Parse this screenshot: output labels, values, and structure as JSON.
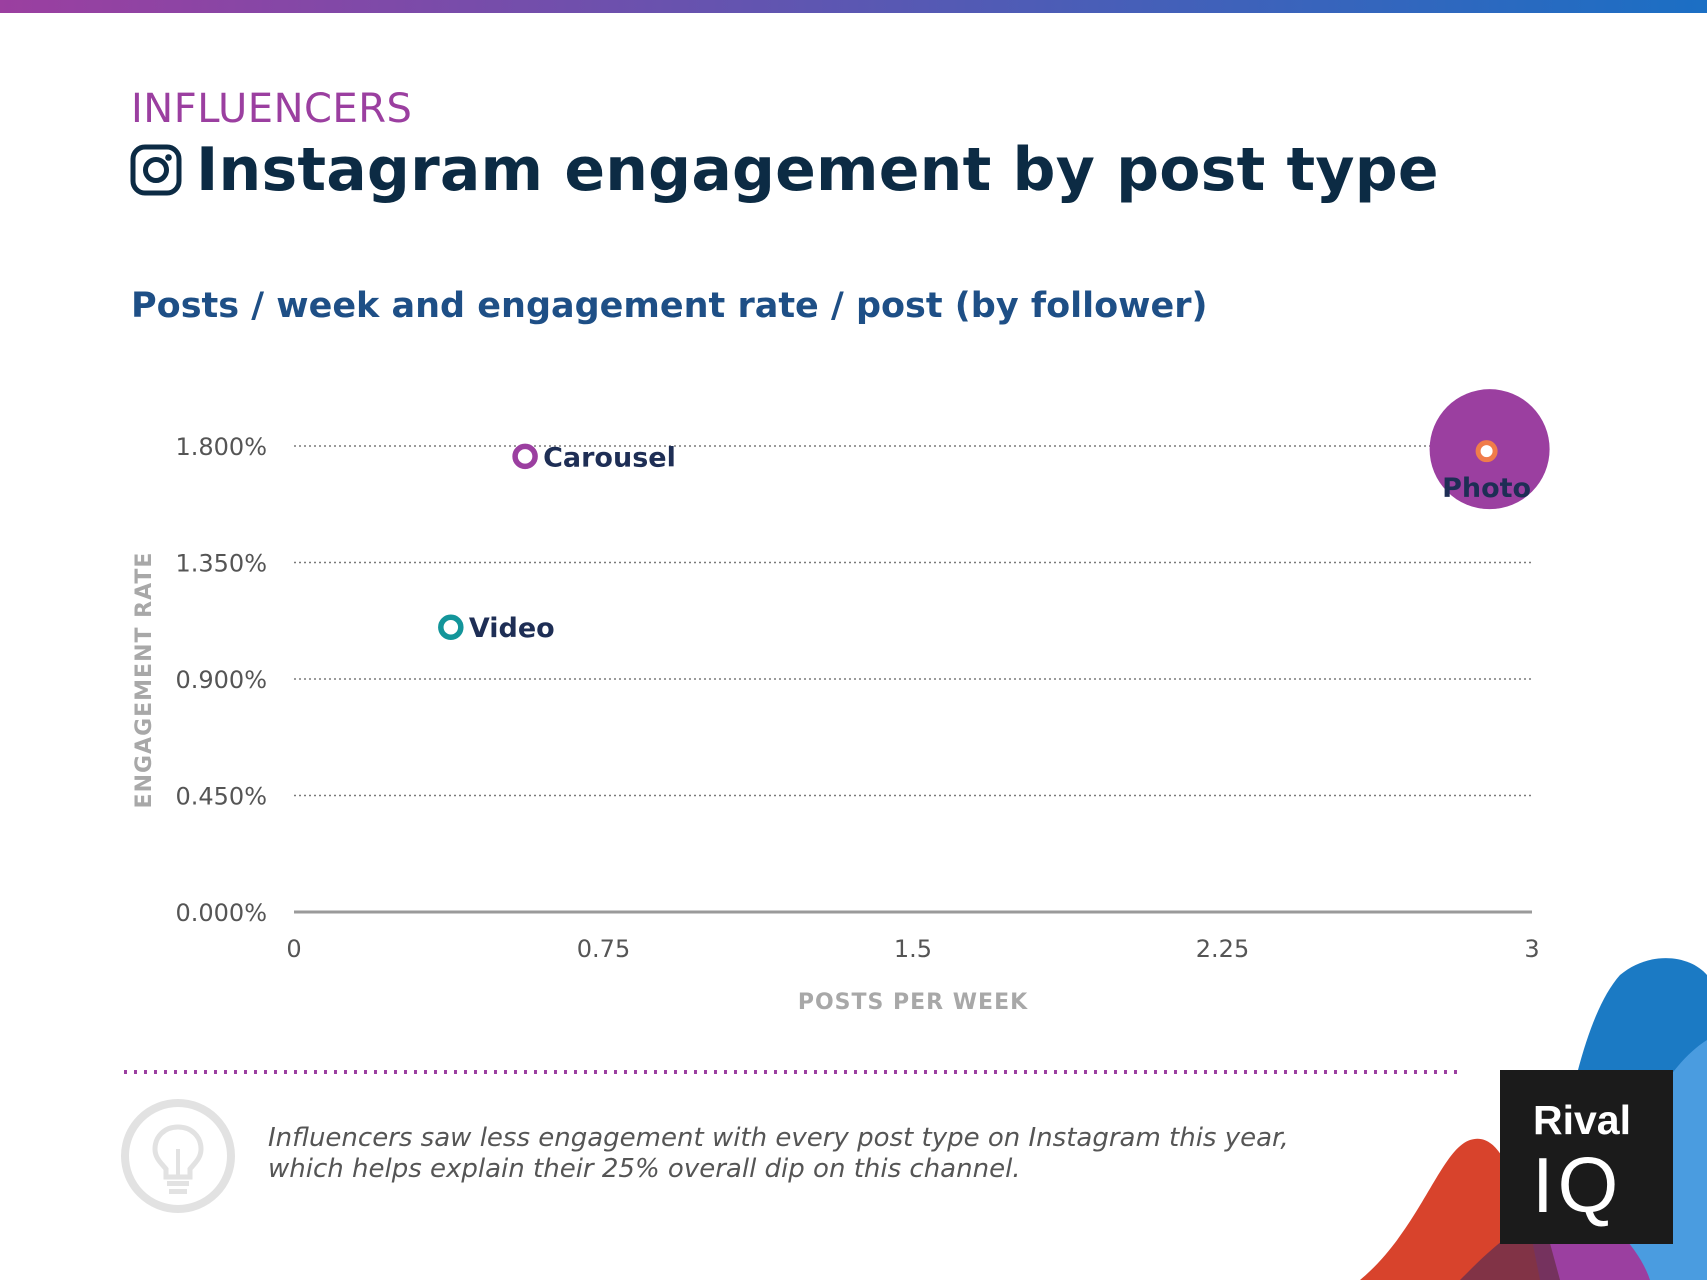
{
  "header": {
    "category": "INFLUENCERS",
    "title": "Instagram engagement by post type",
    "subtitle": "Posts / week and engagement rate / post (by follower)"
  },
  "colors": {
    "category": "#9b3fa0",
    "title": "#0c2b44",
    "subtitle": "#1e4f86",
    "axis_label": "#a8a8a8",
    "tick": "#555555",
    "point_label": "#1e2e55",
    "carousel": "#9b3fa0",
    "video": "#13959a",
    "photo": "#9b3fa0",
    "photo_center": "#f07c4a",
    "divider": "#9b3fa0"
  },
  "chart_data": {
    "type": "scatter",
    "xlabel": "POSTS PER WEEK",
    "ylabel": "ENGAGEMENT RATE",
    "xlim": [
      0,
      3
    ],
    "ylim": [
      0,
      0.018
    ],
    "x_ticks": [
      "0",
      "0.75",
      "1.5",
      "2.25",
      "3"
    ],
    "x_tick_values": [
      0,
      0.75,
      1.5,
      2.25,
      3
    ],
    "y_ticks": [
      "0.000%",
      "0.450%",
      "0.900%",
      "1.350%",
      "1.800%"
    ],
    "y_tick_values": [
      0,
      0.0045,
      0.009,
      0.0135,
      0.018
    ],
    "grid": "horizontal dotted",
    "points": [
      {
        "label": "Carousel",
        "x": 0.56,
        "y": 0.0176,
        "color": "#9b3fa0",
        "emphasis": "small"
      },
      {
        "label": "Video",
        "x": 0.38,
        "y": 0.011,
        "color": "#13959a",
        "emphasis": "small"
      },
      {
        "label": "Photo",
        "x": 2.89,
        "y": 0.0178,
        "color": "#9b3fa0",
        "emphasis": "large"
      }
    ]
  },
  "footer": {
    "insight": "Influencers saw less engagement with every post type on Instagram this year, which helps explain their 25% overall dip on this channel.",
    "logo_word1": "Rival",
    "logo_word2": "IQ"
  }
}
